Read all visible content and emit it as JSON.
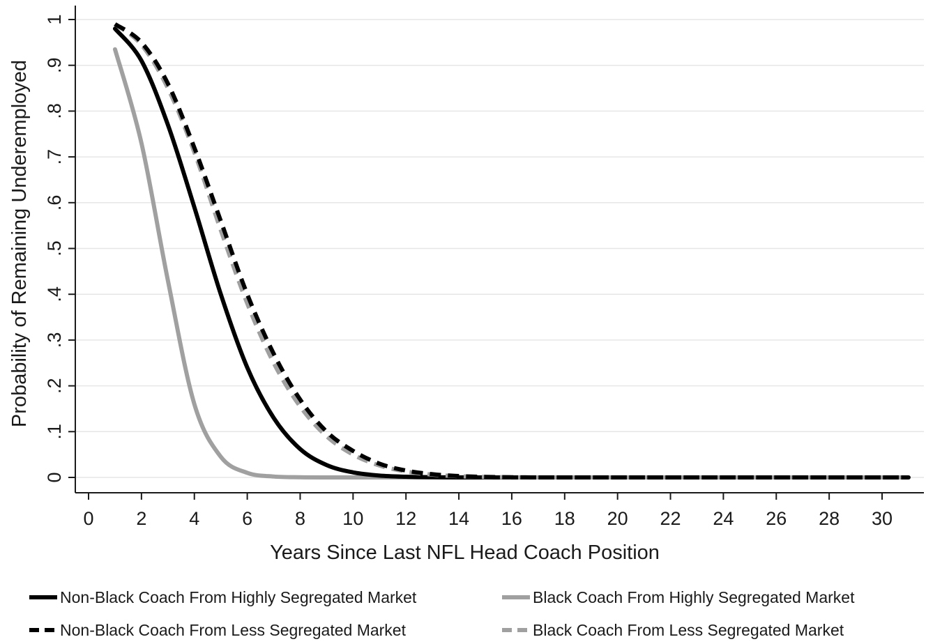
{
  "chart_data": {
    "type": "line",
    "title": "",
    "xlabel": "Years Since Last NFL Head Coach Position",
    "ylabel": "Probability of Remaining Underemployed",
    "xlim": [
      0,
      31
    ],
    "ylim": [
      0,
      1
    ],
    "x_ticks": [
      0,
      2,
      4,
      6,
      8,
      10,
      12,
      14,
      16,
      18,
      20,
      22,
      24,
      26,
      28,
      30
    ],
    "x_tick_labels": [
      "0",
      "2",
      "4",
      "6",
      "8",
      "10",
      "12",
      "14",
      "16",
      "18",
      "20",
      "22",
      "24",
      "26",
      "28",
      "30"
    ],
    "y_ticks": [
      0,
      0.1,
      0.2,
      0.3,
      0.4,
      0.5,
      0.6,
      0.7,
      0.8,
      0.9,
      1
    ],
    "y_tick_labels": [
      "0",
      ".1",
      ".2",
      ".3",
      ".4",
      ".5",
      ".6",
      ".7",
      ".8",
      ".9",
      "1"
    ],
    "grid": true,
    "legend_position": "bottom",
    "x": [
      1,
      2,
      3,
      4,
      5,
      6,
      7,
      8,
      9,
      10,
      11,
      12,
      13,
      14,
      15,
      16,
      17,
      18,
      19,
      20,
      21,
      22,
      23,
      24,
      25,
      26,
      27,
      28,
      29,
      30,
      31
    ],
    "series": [
      {
        "name": "Non-Black Coach From Highly Segregated Market",
        "color": "#000000",
        "dash": "solid",
        "values": [
          0.98,
          0.91,
          0.77,
          0.59,
          0.4,
          0.24,
          0.13,
          0.062,
          0.027,
          0.011,
          0.004,
          0.0015,
          0.0005,
          0,
          0,
          0,
          0,
          0,
          0,
          0,
          0,
          0,
          0,
          0,
          0,
          0,
          0,
          0,
          0,
          0,
          0
        ]
      },
      {
        "name": "Black Coach From Highly Segregated Market",
        "color": "#a0a0a0",
        "dash": "solid",
        "values": [
          0.935,
          0.73,
          0.43,
          0.16,
          0.045,
          0.01,
          0.002,
          0.0003,
          0,
          0,
          0,
          0,
          0,
          0,
          0,
          0,
          0,
          0,
          0,
          0,
          0,
          0,
          0,
          0,
          0,
          0,
          0,
          0,
          0,
          0,
          0
        ]
      },
      {
        "name": "Non-Black Coach From Less Segregated Market",
        "color": "#000000",
        "dash": "dashed",
        "values": [
          0.99,
          0.95,
          0.86,
          0.72,
          0.56,
          0.4,
          0.27,
          0.17,
          0.1,
          0.058,
          0.03,
          0.015,
          0.007,
          0.003,
          0.0012,
          0.0004,
          0,
          0,
          0,
          0,
          0,
          0,
          0,
          0,
          0,
          0,
          0,
          0,
          0,
          0,
          0
        ]
      },
      {
        "name": "Black Coach From Less Segregated Market",
        "color": "#a0a0a0",
        "dash": "dashed",
        "values": [
          0.99,
          0.945,
          0.85,
          0.71,
          0.54,
          0.38,
          0.25,
          0.155,
          0.09,
          0.05,
          0.026,
          0.013,
          0.006,
          0.0025,
          0.001,
          0.0003,
          0,
          0,
          0,
          0,
          0,
          0,
          0,
          0,
          0,
          0,
          0,
          0,
          0,
          0,
          0
        ]
      }
    ]
  }
}
